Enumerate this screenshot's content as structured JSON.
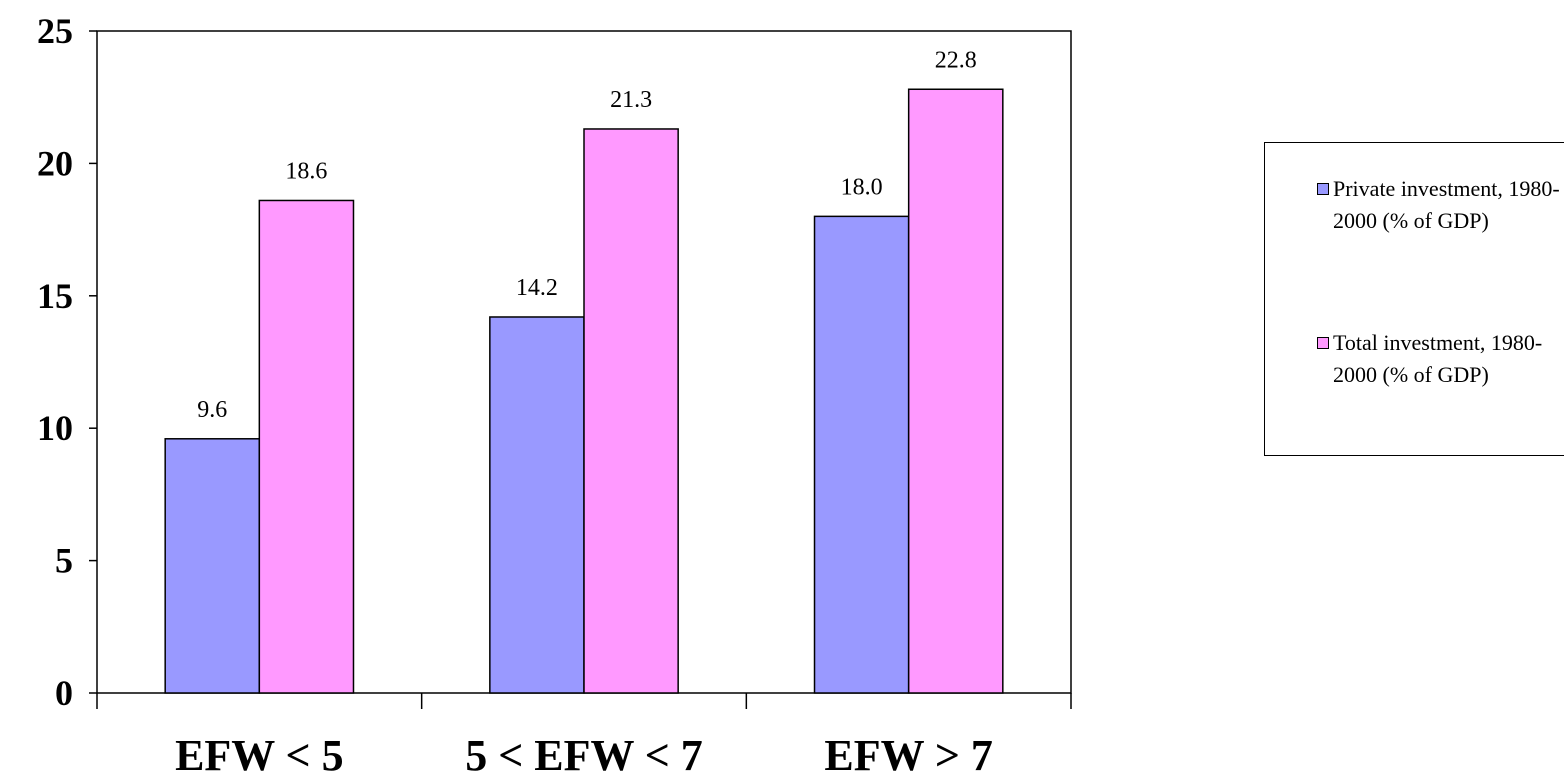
{
  "chart_data": {
    "type": "bar",
    "categories": [
      "EFW < 5",
      "5 < EFW < 7",
      "EFW > 7"
    ],
    "series": [
      {
        "name": "Private investment, 1980-2000 (% of GDP)",
        "values": [
          9.6,
          14.2,
          18.0
        ],
        "labels": [
          "9.6",
          "14.2",
          "18.0"
        ],
        "color": "#9999ff"
      },
      {
        "name": "Total investment, 1980-2000 (% of GDP)",
        "values": [
          18.6,
          21.3,
          22.8
        ],
        "labels": [
          "18.6",
          "21.3",
          "22.8"
        ],
        "color": "#ff99ff"
      }
    ],
    "ylim": [
      0,
      25
    ],
    "yticks": [
      "0",
      "5",
      "10",
      "15",
      "20",
      "25"
    ],
    "legend_position": "right",
    "grid": false
  }
}
